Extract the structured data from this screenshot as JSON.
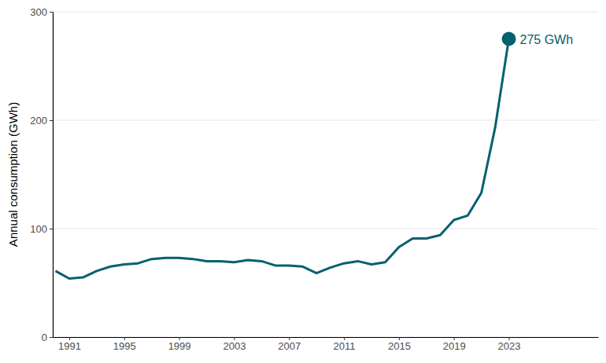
{
  "chart_data": {
    "type": "line",
    "y_label": "Annual consumption (GWh)",
    "x": [
      1990,
      1991,
      1992,
      1993,
      1994,
      1995,
      1996,
      1997,
      1998,
      1999,
      2000,
      2001,
      2002,
      2003,
      2004,
      2005,
      2006,
      2007,
      2008,
      2009,
      2010,
      2011,
      2012,
      2013,
      2014,
      2015,
      2016,
      2017,
      2018,
      2019,
      2020,
      2021,
      2022,
      2023
    ],
    "values": [
      61,
      54,
      55,
      61,
      65,
      67,
      68,
      72,
      73,
      73,
      72,
      70,
      70,
      69,
      71,
      70,
      66,
      66,
      65,
      59,
      64,
      68,
      70,
      67,
      69,
      83,
      91,
      91,
      94,
      108,
      112,
      133,
      193,
      275
    ],
    "color": "#04616f",
    "xlim": [
      1989.8,
      2029.5
    ],
    "ylim": [
      0,
      300
    ],
    "xticks": [
      1991,
      1995,
      1999,
      2003,
      2007,
      2011,
      2015,
      2019,
      2023
    ],
    "yticks": [
      0,
      100,
      200,
      300
    ],
    "grid": true,
    "annotations": [
      {
        "x": 2023,
        "y": 275,
        "text": "275 GWh"
      }
    ]
  }
}
